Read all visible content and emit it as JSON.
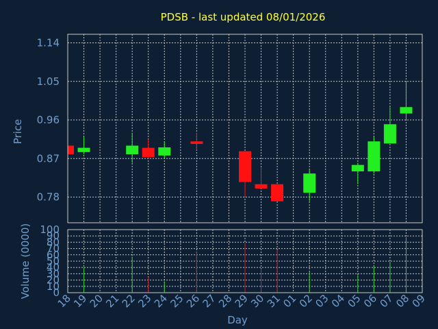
{
  "chart_data": {
    "type": "candlestick",
    "title": "PDSB - last updated 08/01/2026",
    "xlabel": "Day",
    "x_ticks": [
      "18",
      "19",
      "20",
      "21",
      "22",
      "23",
      "24",
      "25",
      "26",
      "27",
      "28",
      "29",
      "30",
      "31",
      "01",
      "02",
      "03",
      "04",
      "05",
      "06",
      "07",
      "08",
      "09"
    ],
    "price": {
      "ylabel": "Price",
      "ylim": [
        0.72,
        1.16
      ],
      "ticks": [
        "1.14",
        "1.05",
        "0.96",
        "0.87",
        "0.78"
      ],
      "tick_values": [
        1.14,
        1.05,
        0.96,
        0.87,
        0.78
      ]
    },
    "volume": {
      "ylabel": "Volume (0000)",
      "ylim": [
        0,
        100
      ],
      "ticks": [
        "100",
        "90",
        "80",
        "70",
        "60",
        "50",
        "40",
        "30",
        "20",
        "10",
        "0"
      ],
      "tick_values": [
        100,
        90,
        80,
        70,
        60,
        50,
        40,
        30,
        20,
        10,
        0
      ]
    },
    "candles": [
      {
        "day": "18",
        "open": 0.9,
        "high": 0.9,
        "low": 0.88,
        "close": 0.88,
        "volume": 0
      },
      {
        "day": "19",
        "open": 0.885,
        "high": 0.92,
        "low": 0.88,
        "close": 0.895,
        "volume": 40
      },
      {
        "day": "22",
        "open": 0.88,
        "high": 0.93,
        "low": 0.86,
        "close": 0.9,
        "volume": 57
      },
      {
        "day": "23",
        "open": 0.895,
        "high": 0.915,
        "low": 0.87,
        "close": 0.873,
        "volume": 25
      },
      {
        "day": "24",
        "open": 0.877,
        "high": 0.91,
        "low": 0.87,
        "close": 0.896,
        "volume": 18
      },
      {
        "day": "26",
        "open": 0.91,
        "high": 0.93,
        "low": 0.89,
        "close": 0.904,
        "volume": 65
      },
      {
        "day": "29",
        "open": 0.887,
        "high": 0.887,
        "low": 0.78,
        "close": 0.815,
        "volume": 78
      },
      {
        "day": "30",
        "open": 0.81,
        "high": 0.85,
        "low": 0.8,
        "close": 0.8,
        "volume": 38
      },
      {
        "day": "31",
        "open": 0.81,
        "high": 0.81,
        "low": 0.77,
        "close": 0.77,
        "volume": 68
      },
      {
        "day": "02",
        "open": 0.79,
        "high": 0.845,
        "low": 0.77,
        "close": 0.835,
        "volume": 33
      },
      {
        "day": "05",
        "open": 0.84,
        "high": 0.86,
        "low": 0.81,
        "close": 0.855,
        "volume": 28
      },
      {
        "day": "06",
        "open": 0.84,
        "high": 0.92,
        "low": 0.835,
        "close": 0.91,
        "volume": 42
      },
      {
        "day": "07",
        "open": 0.905,
        "high": 0.99,
        "low": 0.905,
        "close": 0.95,
        "volume": 49
      },
      {
        "day": "08",
        "open": 0.975,
        "high": 1.05,
        "low": 0.96,
        "close": 0.99,
        "volume": 88
      }
    ],
    "colors": {
      "up": "#22ee22",
      "down": "#ff1111",
      "up_volume": "#33cc33",
      "down_volume": "#cc2222",
      "title": "#ffff33",
      "axis_text": "#6f9fd0",
      "background": "#0f1f33",
      "grid": "#d8d8d8"
    },
    "grid": true
  }
}
